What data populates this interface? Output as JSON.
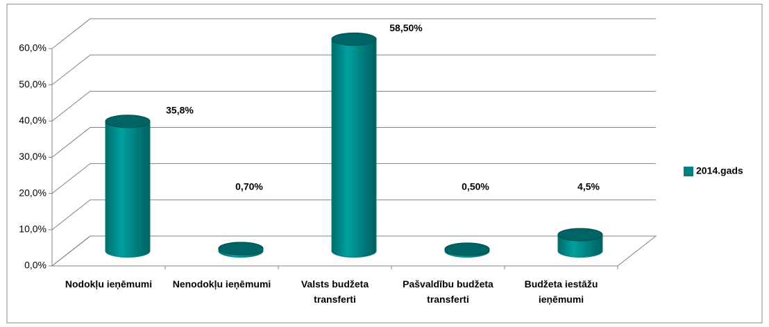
{
  "chart_data": {
    "type": "bar3d",
    "categories": [
      "Nodokļu ieņēmumi",
      "Nenodokļu ieņēmumi",
      "Valsts budžeta transferti",
      "Pašvaldību budžeta transferti",
      "Budžeta iestāžu ieņēmumi"
    ],
    "series": [
      {
        "name": "2014.gads",
        "color": "#008080",
        "values": [
          35.8,
          0.7,
          58.5,
          0.5,
          4.5
        ],
        "value_labels": [
          "35,8%",
          "0,70%",
          "58,50%",
          "0,50%",
          "4,5%"
        ]
      }
    ],
    "ylim": [
      0,
      60
    ],
    "yticks": [
      {
        "value": 0,
        "label": "0,0%"
      },
      {
        "value": 10,
        "label": "10,0%"
      },
      {
        "value": 20,
        "label": "20,0%"
      },
      {
        "value": 30,
        "label": "30,0%"
      },
      {
        "value": 40,
        "label": "40,0%"
      },
      {
        "value": 50,
        "label": "50,0%"
      },
      {
        "value": 60,
        "label": "60,0%"
      }
    ],
    "grid": true,
    "legend": "right"
  }
}
